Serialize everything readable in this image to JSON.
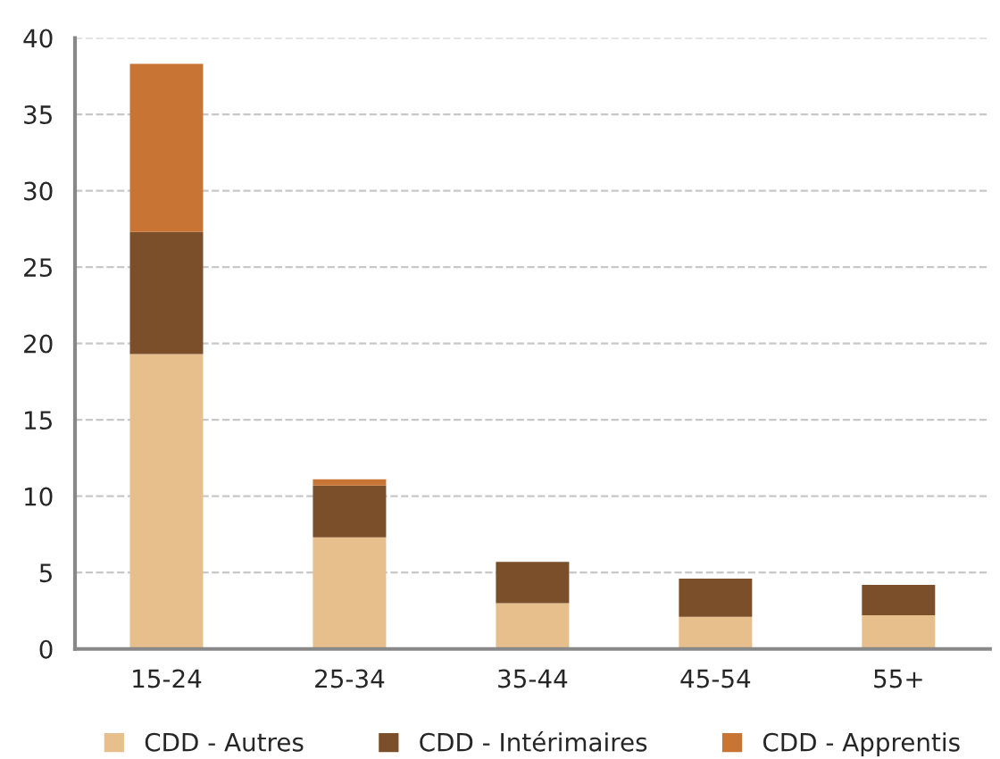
{
  "chart_data": {
    "type": "bar",
    "stacked": true,
    "categories": [
      "15-24",
      "25-34",
      "35-44",
      "45-54",
      "55+"
    ],
    "series": [
      {
        "name": "CDD - Autres",
        "color": "#e6bf8c",
        "values": [
          19.3,
          7.3,
          3.0,
          2.1,
          2.2
        ]
      },
      {
        "name": "CDD - Intérimaires",
        "color": "#7b4f2a",
        "values": [
          8.0,
          3.4,
          2.7,
          2.5,
          2.0
        ]
      },
      {
        "name": "CDD - Apprentis",
        "color": "#c87435",
        "values": [
          11.0,
          0.4,
          0,
          0,
          0
        ]
      }
    ],
    "ylim": [
      0,
      40
    ],
    "yticks": [
      0,
      5,
      10,
      15,
      20,
      25,
      30,
      35,
      40
    ],
    "grid": "y",
    "legend": "bottom"
  }
}
